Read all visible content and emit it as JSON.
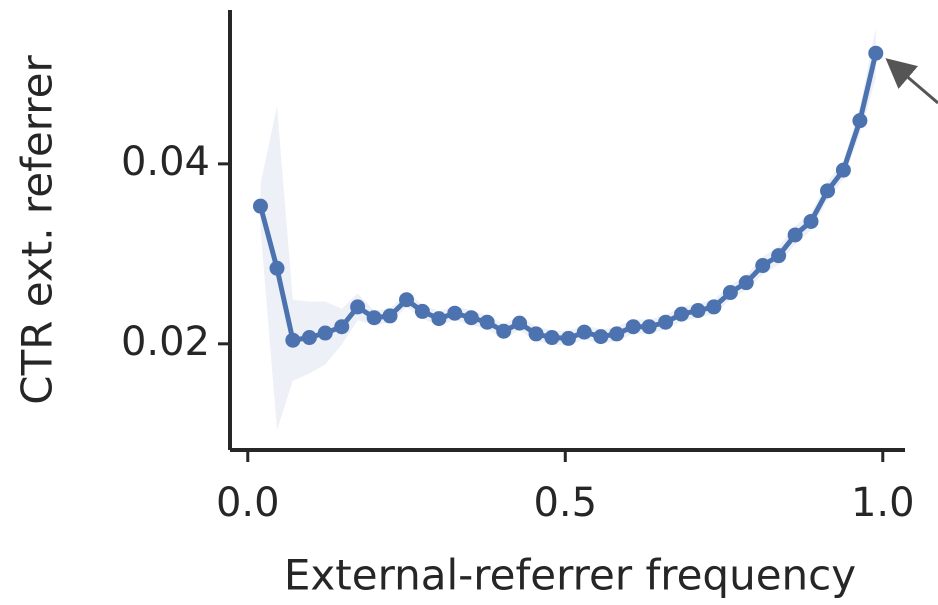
{
  "chart_data": {
    "type": "line",
    "xlabel": "External-referrer frequency",
    "ylabel": "CTR ext. referrer",
    "x": [
      0.02,
      0.046,
      0.071,
      0.097,
      0.122,
      0.148,
      0.173,
      0.199,
      0.224,
      0.25,
      0.275,
      0.301,
      0.326,
      0.352,
      0.377,
      0.403,
      0.428,
      0.454,
      0.479,
      0.505,
      0.53,
      0.556,
      0.581,
      0.607,
      0.632,
      0.658,
      0.683,
      0.709,
      0.734,
      0.76,
      0.785,
      0.811,
      0.836,
      0.862,
      0.887,
      0.913,
      0.938,
      0.964,
      0.989
    ],
    "series": [
      {
        "color": "#4c72b0",
        "values": [
          0.0353,
          0.0284,
          0.0204,
          0.0207,
          0.0212,
          0.0219,
          0.0241,
          0.0229,
          0.0231,
          0.0249,
          0.0236,
          0.0228,
          0.0234,
          0.0229,
          0.0224,
          0.0214,
          0.0223,
          0.0211,
          0.0207,
          0.0206,
          0.0213,
          0.0208,
          0.0211,
          0.0219,
          0.0219,
          0.0224,
          0.0233,
          0.0237,
          0.0241,
          0.0257,
          0.0268,
          0.0287,
          0.0298,
          0.0321,
          0.0336,
          0.037,
          0.0393,
          0.0448,
          0.0523
        ],
        "upper": [
          0.0378,
          0.0464,
          0.0249,
          0.0247,
          0.0247,
          0.0239,
          0.0256,
          0.0237,
          0.0239,
          0.0257,
          0.0244,
          0.0236,
          0.0242,
          0.0237,
          0.0232,
          0.0222,
          0.0231,
          0.0219,
          0.0215,
          0.0214,
          0.0221,
          0.0216,
          0.0219,
          0.0227,
          0.0227,
          0.0232,
          0.0241,
          0.0245,
          0.0249,
          0.0265,
          0.0276,
          0.0297,
          0.0308,
          0.0331,
          0.0346,
          0.038,
          0.0403,
          0.0463,
          0.0551
        ],
        "lower": [
          0.0328,
          0.0104,
          0.0159,
          0.0167,
          0.0177,
          0.0199,
          0.0226,
          0.0221,
          0.0223,
          0.0241,
          0.0228,
          0.022,
          0.0226,
          0.0221,
          0.0216,
          0.0206,
          0.0215,
          0.0203,
          0.0199,
          0.0198,
          0.0205,
          0.02,
          0.0203,
          0.0211,
          0.0211,
          0.0216,
          0.0225,
          0.0229,
          0.0233,
          0.0249,
          0.026,
          0.0277,
          0.0288,
          0.0311,
          0.0326,
          0.036,
          0.0383,
          0.0433,
          0.0495
        ]
      }
    ],
    "xlim": [
      -0.028,
      1.035
    ],
    "ylim": [
      0.0082,
      0.0571
    ],
    "xticks": [
      {
        "value": 0,
        "label": "0.0"
      },
      {
        "value": 0.5,
        "label": "0.5"
      },
      {
        "value": 1,
        "label": "1.0"
      }
    ],
    "yticks": [
      0.02,
      0.04
    ]
  }
}
